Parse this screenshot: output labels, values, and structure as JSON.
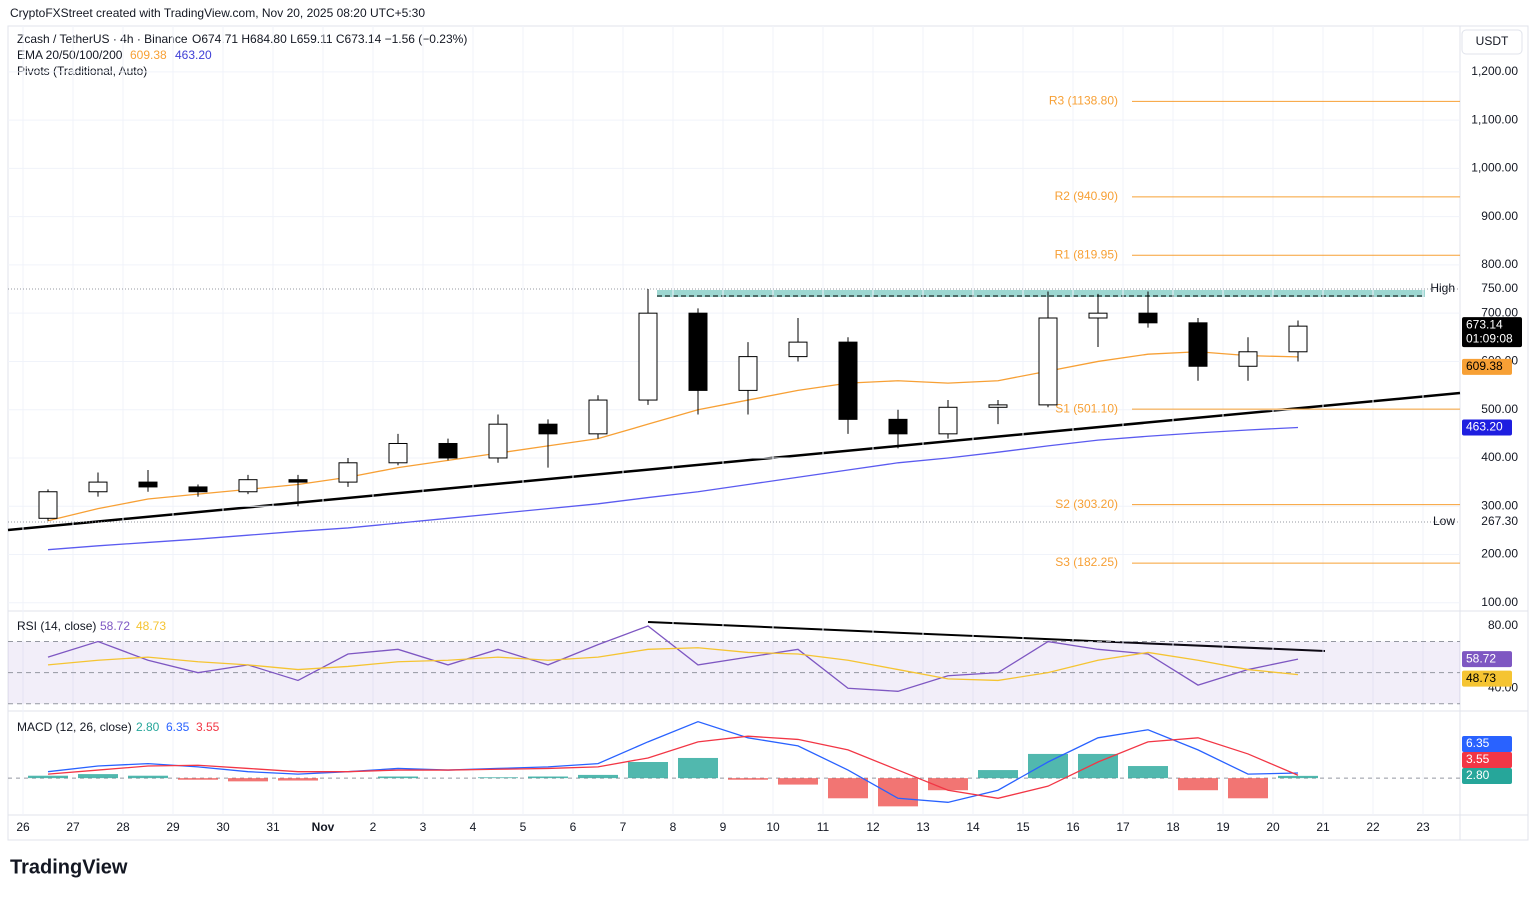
{
  "header": {
    "credit": "CryptoFXStreet created with TradingView.com, Nov 20, 2025 08:20 UTC+5:30",
    "brand": "TradingView"
  },
  "chart_data": {
    "type": "candlestick",
    "symbol_title": "Zcash / TetherUS · 4h · Binance",
    "ohlc_text": "O674.71 H684.80 L659.11 C673.14 −1.56 (−0.23%)",
    "ema_label": "EMA 20/50/100/200",
    "pivots_title": "Pivots (Traditional, Auto)",
    "currency": "USDT",
    "countdown": "01:09:08",
    "categories": [
      "26",
      "27",
      "28",
      "29",
      "30",
      "31",
      "Nov",
      "2",
      "3",
      "4",
      "5",
      "6",
      "7",
      "8",
      "9",
      "10",
      "11",
      "12",
      "13",
      "14",
      "15",
      "16",
      "17",
      "18",
      "19",
      "20",
      "21",
      "22",
      "23"
    ],
    "open": [
      275,
      330,
      350,
      340,
      330,
      355,
      350,
      390,
      430,
      400,
      470,
      450,
      520,
      700,
      540,
      610,
      640,
      480,
      450,
      505,
      510,
      690,
      700,
      680,
      590,
      620,
      null,
      null,
      null
    ],
    "high": [
      335,
      370,
      375,
      345,
      365,
      365,
      400,
      450,
      440,
      490,
      480,
      530,
      750,
      710,
      640,
      690,
      650,
      500,
      520,
      520,
      745,
      740,
      745,
      690,
      650,
      684.8,
      null,
      null,
      null
    ],
    "low": [
      270,
      320,
      330,
      320,
      325,
      300,
      340,
      385,
      395,
      390,
      380,
      440,
      510,
      490,
      490,
      600,
      450,
      420,
      440,
      470,
      505,
      630,
      670,
      560,
      560,
      600,
      null,
      null,
      null
    ],
    "close": [
      330,
      350,
      340,
      330,
      355,
      350,
      390,
      430,
      400,
      470,
      450,
      520,
      700,
      540,
      610,
      640,
      480,
      450,
      505,
      510,
      690,
      700,
      680,
      590,
      620,
      673.14,
      null,
      null,
      null
    ],
    "up_color": "#ffffff",
    "down_color": "#000000",
    "ylim": [
      85,
      1295
    ],
    "yticks": [
      {
        "value": 100,
        "label": "100.00"
      },
      {
        "value": 200,
        "label": "200.00"
      },
      {
        "value": 300,
        "label": "300.00"
      },
      {
        "value": 400,
        "label": "400.00"
      },
      {
        "value": 500,
        "label": "500.00"
      },
      {
        "value": 600,
        "label": "600.00"
      },
      {
        "value": 700,
        "label": "700.00"
      },
      {
        "value": 800,
        "label": "800.00"
      },
      {
        "value": 900,
        "label": "900.00"
      },
      {
        "value": 1000,
        "label": "1,000.00"
      },
      {
        "value": 1100,
        "label": "1,100.00"
      },
      {
        "value": 1200,
        "label": "1,200.00"
      }
    ],
    "grid": true,
    "overlays": [
      {
        "color": "#f7a035",
        "values": [
          270,
          295,
          315,
          325,
          335,
          345,
          360,
          380,
          395,
          410,
          425,
          440,
          470,
          500,
          520,
          540,
          555,
          560,
          555,
          560,
          580,
          600,
          615,
          620,
          612,
          609.38,
          null,
          null,
          null
        ]
      },
      {
        "color": "#5b5bf0",
        "values": [
          210,
          218,
          225,
          232,
          240,
          248,
          255,
          265,
          275,
          285,
          295,
          305,
          318,
          330,
          345,
          360,
          375,
          390,
          400,
          412,
          425,
          437,
          445,
          452,
          458,
          463.2,
          null,
          null,
          null
        ],
        "last_label": "463.20"
      }
    ],
    "pivots": [
      {
        "label": "R3 (1138.80)",
        "value": 1138.8
      },
      {
        "label": "R2 (940.90)",
        "value": 940.9
      },
      {
        "label": "R1 (819.95)",
        "value": 819.95
      },
      {
        "label": "S1 (501.10)",
        "value": 501.1
      },
      {
        "label": "S2 (303.20)",
        "value": 303.2
      },
      {
        "label": "S3 (182.25)",
        "value": 182.25
      }
    ],
    "pivot_color": "#f7a035",
    "extremes": [
      {
        "label": "High",
        "value": 750,
        "value_label": "750.00"
      },
      {
        "label": "Low",
        "value": 267.3,
        "value_label": "267.30"
      }
    ],
    "rsi": {
      "title": "RSI (14, close)",
      "ylim": [
        26,
        89
      ],
      "yticks": [
        {
          "value": 80,
          "label": "80.00"
        },
        {
          "value": 40,
          "label": "40.00"
        }
      ],
      "bands": [
        70,
        50,
        30
      ],
      "values": [
        60,
        70,
        58,
        50,
        55,
        45,
        62,
        65,
        55,
        65,
        55,
        68,
        80,
        55,
        60,
        65,
        40,
        38,
        48,
        50,
        70,
        65,
        62,
        42,
        52,
        58.72,
        null,
        null,
        null
      ],
      "ma": [
        55,
        58,
        60,
        57,
        55,
        52,
        54,
        57,
        58,
        60,
        58,
        60,
        65,
        66,
        63,
        62,
        58,
        52,
        46,
        45,
        50,
        58,
        63,
        58,
        52,
        48.73,
        null,
        null,
        null
      ],
      "color": "#7e57c2",
      "ma_color": "#f5c432"
    },
    "macd": {
      "title": "MACD (12, 26, close)",
      "ylim": [
        -42,
        82
      ],
      "macd": [
        8,
        15,
        18,
        14,
        8,
        5,
        8,
        12,
        10,
        12,
        14,
        18,
        45,
        70,
        50,
        40,
        10,
        -25,
        -30,
        -15,
        20,
        50,
        60,
        35,
        5,
        6.35,
        null,
        null,
        null
      ],
      "signal": [
        5,
        10,
        15,
        16,
        12,
        8,
        8,
        10,
        10,
        11,
        12,
        14,
        25,
        45,
        52,
        48,
        35,
        10,
        -15,
        -25,
        -10,
        20,
        45,
        50,
        30,
        3.55,
        null,
        null,
        null
      ],
      "histogram": [
        3,
        5,
        3,
        -2,
        -4,
        -3,
        0,
        2,
        0,
        1,
        2,
        4,
        20,
        25,
        -2,
        -8,
        -25,
        -35,
        -15,
        10,
        30,
        30,
        15,
        -15,
        -25,
        2.8,
        null,
        null,
        null
      ],
      "histogram_last_label": "2.80",
      "macd_color": "#2962ff",
      "signal_color": "#f23645",
      "up_color": "#26a69a",
      "down_color": "#ef5350"
    }
  }
}
